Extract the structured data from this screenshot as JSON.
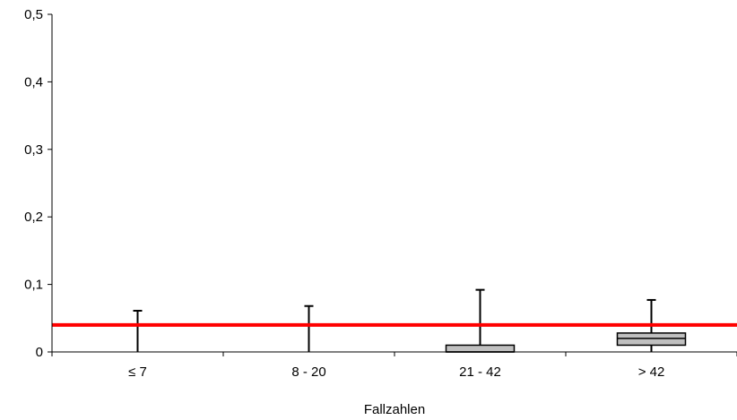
{
  "chart_data": {
    "type": "boxplot",
    "title": "",
    "xlabel": "Fallzahlen",
    "ylabel": "",
    "ylim": [
      0,
      0.5
    ],
    "y_ticks": [
      {
        "value": 0,
        "label": "0"
      },
      {
        "value": 0.1,
        "label": "0,1"
      },
      {
        "value": 0.2,
        "label": "0,2"
      },
      {
        "value": 0.3,
        "label": "0,3"
      },
      {
        "value": 0.4,
        "label": "0,4"
      },
      {
        "value": 0.5,
        "label": "0,5"
      }
    ],
    "categories": [
      "≤ 7",
      "8 - 20",
      "21 - 42",
      "> 42"
    ],
    "boxes": [
      {
        "category": "≤ 7",
        "min": 0,
        "q1": 0,
        "median": 0,
        "q3": 0,
        "max": 0.061
      },
      {
        "category": "8 - 20",
        "min": 0,
        "q1": 0,
        "median": 0,
        "q3": 0,
        "max": 0.068
      },
      {
        "category": "21 - 42",
        "min": 0,
        "q1": 0,
        "median": 0,
        "q3": 0.01,
        "max": 0.092
      },
      {
        "category": "> 42",
        "min": 0,
        "q1": 0.01,
        "median": 0.02,
        "q3": 0.028,
        "max": 0.077
      }
    ],
    "reference_line": {
      "value": 0.04,
      "color": "#ff0000"
    },
    "grid": false,
    "colors": {
      "box_fill": "#c0c0c0",
      "box_stroke": "#000000",
      "axis": "#000000"
    }
  }
}
